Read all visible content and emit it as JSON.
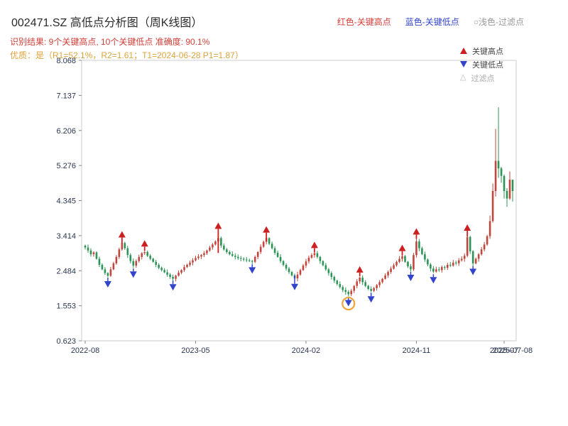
{
  "header": {
    "title": "002471.SZ 高低点分析图（周K线图）",
    "result_line": "识别结果: 9个关键高点, 10个关键低点  准确度: 90.1%",
    "quality_line": "优质：是（R1=52.1%，R2=1.61；T1=2024-06-28 P1=1.87）",
    "legend_high": "红色-关键高点",
    "legend_low": "蓝色-关键低点",
    "legend_filtered": "○浅色-过滤点"
  },
  "legend": {
    "high": "关键高点",
    "low": "关键低点",
    "filtered": "过滤点"
  },
  "colors": {
    "up": "#c2463c",
    "down": "#2d9457",
    "high_marker": "#cc1f1f",
    "low_marker": "#3344cc",
    "filtered": "#f0a43c",
    "axis_text": "#2a3550",
    "border": "#cccccc",
    "result_text": "#d23f38",
    "quality_text": "#dca43c",
    "header_gray": "#999999",
    "title_text": "#2b2b2b"
  },
  "chart_data": {
    "type": "candlestick",
    "title": "002471.SZ 高低点分析图（周K线图）",
    "ylim": [
      0.623,
      8.068
    ],
    "y_ticks": [
      0.623,
      1.553,
      2.484,
      3.414,
      4.345,
      5.276,
      6.206,
      7.137,
      8.068
    ],
    "x_ticks": [
      {
        "week": 0,
        "label": "2022-08"
      },
      {
        "week": 39,
        "label": "2023-05"
      },
      {
        "week": 78,
        "label": "2024-02"
      },
      {
        "week": 117,
        "label": "2024-11"
      },
      {
        "week": 148,
        "label": "2025-07"
      }
    ],
    "end_label": {
      "week": 151,
      "label": "2025-07-08"
    },
    "first_open": 3.15,
    "closes": [
      3.1,
      3.02,
      2.92,
      2.97,
      2.8,
      2.64,
      2.52,
      2.42,
      2.35,
      2.52,
      2.68,
      2.85,
      3.05,
      3.22,
      3.08,
      2.9,
      2.74,
      2.62,
      2.74,
      2.85,
      2.95,
      2.98,
      2.88,
      2.8,
      2.72,
      2.64,
      2.56,
      2.5,
      2.44,
      2.38,
      2.32,
      2.27,
      2.35,
      2.43,
      2.5,
      2.58,
      2.64,
      2.7,
      2.76,
      2.82,
      2.86,
      2.9,
      2.95,
      3.02,
      3.1,
      3.18,
      3.26,
      3.35,
      3.15,
      3.05,
      2.98,
      2.92,
      2.88,
      2.85,
      2.82,
      2.8,
      2.78,
      2.76,
      2.74,
      2.72,
      2.85,
      2.98,
      3.12,
      3.25,
      3.35,
      3.2,
      3.08,
      2.96,
      2.85,
      2.74,
      2.64,
      2.54,
      2.45,
      2.36,
      2.28,
      2.38,
      2.5,
      2.62,
      2.73,
      2.83,
      2.9,
      2.95,
      2.85,
      2.74,
      2.63,
      2.52,
      2.42,
      2.32,
      2.22,
      2.13,
      2.05,
      1.97,
      1.92,
      1.86,
      1.95,
      2.08,
      2.2,
      2.3,
      2.18,
      2.08,
      2.0,
      1.95,
      2.02,
      2.1,
      2.18,
      2.27,
      2.36,
      2.45,
      2.54,
      2.63,
      2.72,
      2.8,
      2.87,
      2.72,
      2.6,
      2.52,
      2.9,
      3.26,
      3.08,
      2.92,
      2.78,
      2.65,
      2.54,
      2.46,
      2.52,
      2.5,
      2.58,
      2.56,
      2.64,
      2.62,
      2.7,
      2.68,
      2.76,
      2.8,
      2.88,
      3.38,
      3.0,
      2.68,
      2.8,
      2.92,
      3.05,
      3.18,
      3.4,
      3.8,
      4.6,
      5.4,
      5.2,
      5.0,
      4.6,
      4.4,
      4.9,
      4.6
    ],
    "wick_overrides": {
      "47": {
        "h": 3.5
      },
      "64": {
        "h": 3.4
      },
      "93": {
        "l": 1.8
      },
      "112": {
        "h": 2.9
      },
      "117": {
        "h": 3.35
      },
      "135": {
        "h": 3.45
      },
      "143": {
        "h": 3.95
      },
      "144": {
        "h": 4.8,
        "l": 3.76
      },
      "145": {
        "h": 6.25,
        "l": 4.45
      },
      "146": {
        "h": 6.82,
        "l": 4.95
      },
      "147": {
        "l": 4.82
      },
      "148": {
        "l": 4.4
      },
      "149": {
        "l": 4.18
      },
      "150": {
        "h": 5.12
      },
      "151": {
        "h": 4.88,
        "l": 4.32
      }
    },
    "markers": {
      "highs": [
        {
          "week": 13,
          "value": 3.27,
          "tail": 8
        },
        {
          "week": 21,
          "value": 3.03,
          "tail": 6
        },
        {
          "week": 47,
          "value": 3.5,
          "tail": 34
        },
        {
          "week": 64,
          "value": 3.4,
          "tail": 12
        },
        {
          "week": 81,
          "value": 2.99,
          "tail": 6
        },
        {
          "week": 97,
          "value": 2.34,
          "tail": 5
        },
        {
          "week": 112,
          "value": 2.91,
          "tail": 6
        },
        {
          "week": 117,
          "value": 3.35,
          "tail": 6
        },
        {
          "week": 135,
          "value": 3.45,
          "tail": 8
        }
      ],
      "lows": [
        {
          "week": 8,
          "value": 2.3,
          "tail": 5
        },
        {
          "week": 17,
          "value": 2.56,
          "tail": 4
        },
        {
          "week": 31,
          "value": 2.22,
          "tail": 5
        },
        {
          "week": 59,
          "value": 2.67,
          "tail": 4
        },
        {
          "week": 74,
          "value": 2.23,
          "tail": 12
        },
        {
          "week": 93,
          "value": 1.8,
          "tail": 4
        },
        {
          "week": 101,
          "value": 1.9,
          "tail": 5
        },
        {
          "week": 115,
          "value": 2.47,
          "tail": 4
        },
        {
          "week": 123,
          "value": 2.41,
          "tail": 4
        },
        {
          "week": 137,
          "value": 2.63,
          "tail": 4
        }
      ],
      "filtered": [
        {
          "week": 93,
          "value": 1.8
        }
      ]
    }
  }
}
